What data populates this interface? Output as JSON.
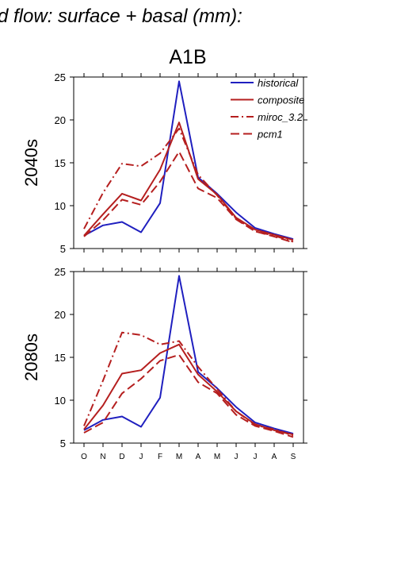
{
  "figure": {
    "title": "d flow: surface + basal (mm):",
    "subtitle": "A1B"
  },
  "colors": {
    "historical": "#1f1fbf",
    "scenario": "#b51f1f"
  },
  "chart_data": [
    {
      "type": "line",
      "panel": "top",
      "ylabel": "2040s",
      "ylim": [
        5,
        25
      ],
      "yticks": [
        5,
        10,
        15,
        20,
        25
      ],
      "categories": [
        "O",
        "N",
        "D",
        "J",
        "F",
        "M",
        "A",
        "M",
        "J",
        "J",
        "A",
        "S"
      ],
      "grid": false,
      "legend": "top-right",
      "series": [
        {
          "name": "historical",
          "style": "solid",
          "values": [
            6.5,
            7.7,
            8.1,
            6.9,
            10.3,
            24.5,
            13.3,
            11.4,
            9.2,
            7.4,
            6.7,
            6.1
          ]
        },
        {
          "name": "composite",
          "style": "solid",
          "values": [
            6.5,
            9.0,
            11.4,
            10.6,
            14.2,
            19.7,
            13.1,
            11.3,
            8.6,
            7.2,
            6.6,
            6.0
          ]
        },
        {
          "name": "miroc_3.2",
          "style": "dashdot",
          "values": [
            7.3,
            11.5,
            14.9,
            14.6,
            16.1,
            19.0,
            13.6,
            11.2,
            8.5,
            7.0,
            6.5,
            5.8
          ]
        },
        {
          "name": "pcm1",
          "style": "dashed",
          "values": [
            6.4,
            8.3,
            10.7,
            10.1,
            12.8,
            16.3,
            12.0,
            10.9,
            8.4,
            7.0,
            6.4,
            5.7
          ]
        }
      ]
    },
    {
      "type": "line",
      "panel": "bottom",
      "ylabel": "2080s",
      "ylim": [
        5,
        25
      ],
      "yticks": [
        5,
        10,
        15,
        20,
        25
      ],
      "categories": [
        "O",
        "N",
        "D",
        "J",
        "F",
        "M",
        "A",
        "M",
        "J",
        "J",
        "A",
        "S"
      ],
      "grid": false,
      "series": [
        {
          "name": "historical",
          "style": "solid",
          "values": [
            6.5,
            7.7,
            8.1,
            6.9,
            10.3,
            24.5,
            13.3,
            11.4,
            9.2,
            7.4,
            6.7,
            6.1
          ]
        },
        {
          "name": "composite",
          "style": "solid",
          "values": [
            6.6,
            9.4,
            13.1,
            13.5,
            15.5,
            16.5,
            13.0,
            11.0,
            8.7,
            7.2,
            6.5,
            6.0
          ]
        },
        {
          "name": "miroc_3.2",
          "style": "dashdot",
          "values": [
            7.0,
            12.3,
            17.9,
            17.6,
            16.5,
            16.9,
            13.9,
            11.3,
            8.7,
            7.1,
            6.6,
            5.9
          ]
        },
        {
          "name": "pcm1",
          "style": "dashed",
          "values": [
            6.2,
            7.4,
            10.8,
            12.5,
            14.6,
            15.3,
            12.1,
            10.8,
            8.3,
            7.0,
            6.4,
            5.7
          ]
        }
      ]
    }
  ]
}
